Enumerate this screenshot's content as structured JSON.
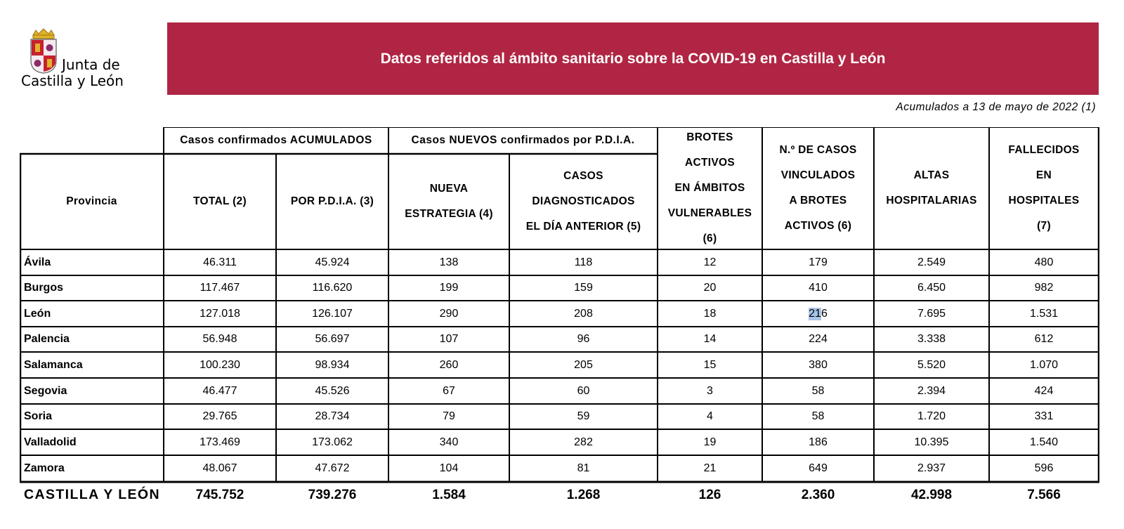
{
  "logo": {
    "line1": "Junta de",
    "line2": "Castilla y León"
  },
  "title": "Datos referidos al ámbito sanitario sobre la COVID-19 en Castilla y León",
  "subtitle": "Acumulados a 13 de mayo de 2022 (1)",
  "colors": {
    "banner": "#b02543",
    "selection": "#a9c5e8"
  },
  "table": {
    "group_headers": {
      "acumulados": "Casos confirmados ACUMULADOS",
      "nuevos": "Casos NUEVOS confirmados por P.D.I.A."
    },
    "headers": {
      "provincia": "Provincia",
      "total": "TOTAL (2)",
      "por_pdia": "POR P.D.I.A. (3)",
      "nueva_estrategia": [
        "NUEVA",
        "ESTRATEGIA (4)"
      ],
      "casos_diag": [
        "CASOS",
        "DIAGNOSTICADOS",
        "EL DÍA ANTERIOR (5)"
      ],
      "brotes": [
        "BROTES",
        "ACTIVOS",
        "EN ÁMBITOS",
        "VULNERABLES",
        "(6)"
      ],
      "vinculados": [
        "N.º DE CASOS",
        "VINCULADOS",
        "A BROTES",
        "ACTIVOS (6)"
      ],
      "altas": [
        "ALTAS",
        "HOSPITALARIAS"
      ],
      "fallecidos": [
        "FALLECIDOS",
        "EN",
        "HOSPITALES",
        "(7)"
      ]
    },
    "rows": [
      {
        "provincia": "Ávila",
        "values": [
          "46.311",
          "45.924",
          "138",
          "118",
          "12",
          "179",
          "2.549",
          "480"
        ]
      },
      {
        "provincia": "Burgos",
        "values": [
          "117.467",
          "116.620",
          "199",
          "159",
          "20",
          "410",
          "6.450",
          "982"
        ]
      },
      {
        "provincia": "León",
        "values": [
          "127.018",
          "126.107",
          "290",
          "208",
          "18",
          "216",
          "7.695",
          "1.531"
        ]
      },
      {
        "provincia": "Palencia",
        "values": [
          "56.948",
          "56.697",
          "107",
          "96",
          "14",
          "224",
          "3.338",
          "612"
        ]
      },
      {
        "provincia": "Salamanca",
        "values": [
          "100.230",
          "98.934",
          "260",
          "205",
          "15",
          "380",
          "5.520",
          "1.070"
        ]
      },
      {
        "provincia": "Segovia",
        "values": [
          "46.477",
          "45.526",
          "67",
          "60",
          "3",
          "58",
          "2.394",
          "424"
        ]
      },
      {
        "provincia": "Soria",
        "values": [
          "29.765",
          "28.734",
          "79",
          "59",
          "4",
          "58",
          "1.720",
          "331"
        ]
      },
      {
        "provincia": "Valladolid",
        "values": [
          "173.469",
          "173.062",
          "340",
          "282",
          "19",
          "186",
          "10.395",
          "1.540"
        ]
      },
      {
        "provincia": "Zamora",
        "values": [
          "48.067",
          "47.672",
          "104",
          "81",
          "21",
          "649",
          "2.937",
          "596"
        ]
      }
    ],
    "total_row": {
      "provincia": "CASTILLA Y LEÓN",
      "values": [
        "745.752",
        "739.276",
        "1.584",
        "1.268",
        "126",
        "2.360",
        "42.998",
        "7.566"
      ]
    }
  }
}
